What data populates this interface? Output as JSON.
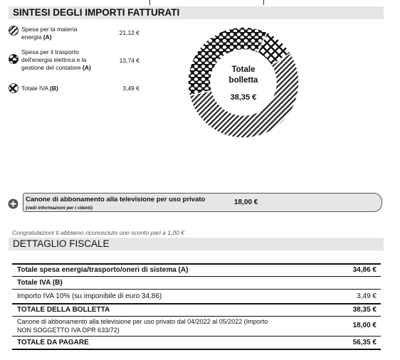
{
  "summary": {
    "title": "SINTESI DEGLI IMPORTI FATTURATI",
    "legend": [
      {
        "label_line1": "Spesa per la materia",
        "label_line2": "energia ",
        "code": "(A)",
        "value": "21,12 €",
        "icon": "diagonal-hatch-icon"
      },
      {
        "label_line1": "Spesa per il trasporto",
        "label_line2": "dell'energia elettrica e la",
        "label_line3": "gestione del contatore ",
        "code": "(A)",
        "value": "13,74 €",
        "icon": "hexagon-pattern-icon"
      },
      {
        "label_line1": "Totale IVA ",
        "code": "(B)",
        "value": "3,49 €",
        "icon": "crosshatch-icon"
      }
    ],
    "donut": {
      "center_line1": "Totale",
      "center_line2": "bolletta",
      "center_value": "38,35 €"
    }
  },
  "chart_data": {
    "type": "pie",
    "categories": [
      "Spesa per la materia energia (A)",
      "Spesa per il trasporto dell'energia elettrica e la gestione del contatore (A)",
      "Totale IVA (B)"
    ],
    "values": [
      21.12,
      13.74,
      3.49
    ],
    "title": "",
    "donut": true
  },
  "canone": {
    "label": "Canone di abbonamento alla televisione per uso privato",
    "sub": "(vedi informazioni per i clienti)",
    "value": "18,00 €"
  },
  "congrat": "Congratulazioni ti abbiamo riconosciuto uno sconto pari a 1,00 €",
  "fiscal": {
    "title": "DETTAGLIO FISCALE",
    "rows": [
      {
        "label": "Totale spesa energia/trasporto/oneri di sistema (A)",
        "value": "34,86 €"
      },
      {
        "label": "Totale IVA (B)",
        "value": ""
      },
      {
        "label": "Importo IVA 10% (su imponibile di euro 34,86)",
        "value": "3,49 €"
      },
      {
        "label": "TOTALE DELLA BOLLETTA",
        "value": "38,35 €"
      },
      {
        "label_line1": "Canone di abbonamento alla televisione per uso privato dal 04/2022 al 05/2022 (Importo",
        "label_line2": "NON SOGGETTO IVA DPR 633/72)",
        "value": "18,00 €"
      },
      {
        "label": "TOTALE DA PAGARE",
        "value": "56,35 €"
      }
    ]
  }
}
